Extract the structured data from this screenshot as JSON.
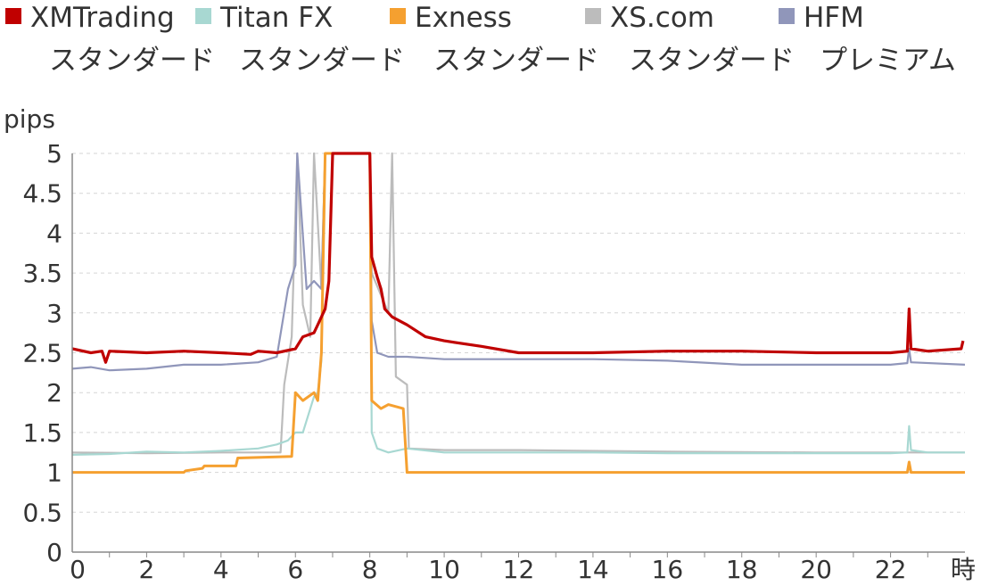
{
  "chart_data": {
    "type": "line",
    "ylabel": "pips",
    "xlabel": "時",
    "xlim": [
      0,
      24
    ],
    "ylim": [
      0,
      5
    ],
    "x_ticks": [
      "0",
      "2",
      "4",
      "6",
      "8",
      "10",
      "12",
      "14",
      "16",
      "18",
      "20",
      "22"
    ],
    "y_ticks": [
      "0",
      "0.5",
      "1",
      "1.5",
      "2",
      "2.5",
      "3",
      "3.5",
      "4",
      "4.5",
      "5"
    ],
    "grid": true,
    "legend_position": "top",
    "series": [
      {
        "name": "XMTrading",
        "name2": "スタンダード",
        "color": "#c00000",
        "width": 3.2,
        "points": [
          [
            0,
            2.55
          ],
          [
            0.5,
            2.5
          ],
          [
            0.8,
            2.52
          ],
          [
            0.9,
            2.38
          ],
          [
            1.0,
            2.52
          ],
          [
            2,
            2.5
          ],
          [
            3,
            2.52
          ],
          [
            4,
            2.5
          ],
          [
            4.8,
            2.48
          ],
          [
            5,
            2.52
          ],
          [
            5.5,
            2.5
          ],
          [
            6.0,
            2.55
          ],
          [
            6.2,
            2.7
          ],
          [
            6.5,
            2.75
          ],
          [
            6.6,
            2.85
          ],
          [
            6.8,
            3.05
          ],
          [
            6.9,
            3.4
          ],
          [
            7.0,
            5.0
          ],
          [
            8.0,
            5.0
          ],
          [
            8.05,
            3.7
          ],
          [
            8.2,
            3.45
          ],
          [
            8.3,
            3.3
          ],
          [
            8.4,
            3.05
          ],
          [
            8.6,
            2.95
          ],
          [
            9.0,
            2.85
          ],
          [
            9.5,
            2.7
          ],
          [
            10,
            2.65
          ],
          [
            11,
            2.58
          ],
          [
            12,
            2.5
          ],
          [
            14,
            2.5
          ],
          [
            16,
            2.52
          ],
          [
            18,
            2.52
          ],
          [
            20,
            2.5
          ],
          [
            22,
            2.5
          ],
          [
            22.45,
            2.52
          ],
          [
            22.5,
            3.05
          ],
          [
            22.55,
            2.55
          ],
          [
            23,
            2.52
          ],
          [
            23.9,
            2.55
          ],
          [
            23.95,
            2.65
          ]
        ]
      },
      {
        "name": "Titan FX",
        "name2": "スタンダード",
        "color": "#a8d8d2",
        "width": 2.2,
        "points": [
          [
            0,
            1.22
          ],
          [
            1,
            1.23
          ],
          [
            2,
            1.26
          ],
          [
            3,
            1.25
          ],
          [
            4,
            1.27
          ],
          [
            5,
            1.3
          ],
          [
            5.5,
            1.35
          ],
          [
            5.8,
            1.4
          ],
          [
            6.0,
            1.5
          ],
          [
            6.2,
            1.5
          ],
          [
            6.5,
            1.95
          ],
          [
            6.6,
            2.0
          ],
          [
            6.7,
            2.4
          ],
          [
            6.8,
            5.0
          ],
          [
            8.0,
            5.0
          ],
          [
            8.05,
            1.5
          ],
          [
            8.2,
            1.3
          ],
          [
            8.5,
            1.25
          ],
          [
            9,
            1.3
          ],
          [
            10,
            1.25
          ],
          [
            12,
            1.25
          ],
          [
            14,
            1.25
          ],
          [
            16,
            1.24
          ],
          [
            18,
            1.24
          ],
          [
            20,
            1.24
          ],
          [
            22,
            1.24
          ],
          [
            22.45,
            1.25
          ],
          [
            22.5,
            1.58
          ],
          [
            22.55,
            1.28
          ],
          [
            23,
            1.25
          ],
          [
            24,
            1.25
          ]
        ]
      },
      {
        "name": "Exness",
        "name2": "スタンダード",
        "color": "#f5a030",
        "width": 3.0,
        "points": [
          [
            0,
            1.0
          ],
          [
            3.0,
            1.0
          ],
          [
            3.05,
            1.02
          ],
          [
            3.5,
            1.05
          ],
          [
            3.55,
            1.08
          ],
          [
            4.4,
            1.08
          ],
          [
            4.45,
            1.18
          ],
          [
            5.9,
            1.2
          ],
          [
            6.0,
            2.0
          ],
          [
            6.2,
            1.9
          ],
          [
            6.5,
            2.0
          ],
          [
            6.6,
            1.9
          ],
          [
            6.7,
            2.5
          ],
          [
            6.8,
            5.0
          ],
          [
            8.0,
            5.0
          ],
          [
            8.05,
            1.9
          ],
          [
            8.3,
            1.8
          ],
          [
            8.5,
            1.85
          ],
          [
            8.9,
            1.8
          ],
          [
            9.0,
            1.0
          ],
          [
            12,
            1.0
          ],
          [
            16,
            1.0
          ],
          [
            20,
            1.0
          ],
          [
            22.45,
            1.0
          ],
          [
            22.5,
            1.13
          ],
          [
            22.55,
            1.0
          ],
          [
            24,
            1.0
          ]
        ]
      },
      {
        "name": "XS.com",
        "name2": "スタンダード",
        "color": "#bcbcbc",
        "width": 2.2,
        "points": [
          [
            0,
            1.25
          ],
          [
            2,
            1.24
          ],
          [
            4,
            1.25
          ],
          [
            5.6,
            1.25
          ],
          [
            5.7,
            2.1
          ],
          [
            5.9,
            2.7
          ],
          [
            6.05,
            5.0
          ],
          [
            6.2,
            3.1
          ],
          [
            6.4,
            2.7
          ],
          [
            6.5,
            5.0
          ],
          [
            6.7,
            3.3
          ],
          [
            6.8,
            5.0
          ],
          [
            8.0,
            5.0
          ],
          [
            8.05,
            3.5
          ],
          [
            8.5,
            3.0
          ],
          [
            8.6,
            5.0
          ],
          [
            8.7,
            2.2
          ],
          [
            9.0,
            2.1
          ],
          [
            9.05,
            1.3
          ],
          [
            10,
            1.28
          ],
          [
            12,
            1.28
          ],
          [
            16,
            1.26
          ],
          [
            20,
            1.25
          ],
          [
            24,
            1.25
          ]
        ]
      },
      {
        "name": "HFM",
        "name2": "プレミアム",
        "color": "#9096ba",
        "width": 2.2,
        "points": [
          [
            0,
            2.3
          ],
          [
            0.5,
            2.32
          ],
          [
            1,
            2.28
          ],
          [
            2,
            2.3
          ],
          [
            3,
            2.35
          ],
          [
            4,
            2.35
          ],
          [
            5,
            2.38
          ],
          [
            5.5,
            2.45
          ],
          [
            5.8,
            3.3
          ],
          [
            6.0,
            3.6
          ],
          [
            6.05,
            5.0
          ],
          [
            6.3,
            3.3
          ],
          [
            6.5,
            3.4
          ],
          [
            6.7,
            3.3
          ],
          [
            6.8,
            5.0
          ],
          [
            8.0,
            5.0
          ],
          [
            8.05,
            2.9
          ],
          [
            8.2,
            2.5
          ],
          [
            8.5,
            2.45
          ],
          [
            9,
            2.45
          ],
          [
            10,
            2.42
          ],
          [
            12,
            2.42
          ],
          [
            14,
            2.42
          ],
          [
            16,
            2.4
          ],
          [
            18,
            2.35
          ],
          [
            20,
            2.35
          ],
          [
            22,
            2.35
          ],
          [
            22.45,
            2.37
          ],
          [
            22.5,
            2.55
          ],
          [
            22.55,
            2.38
          ],
          [
            24,
            2.35
          ]
        ]
      }
    ]
  }
}
